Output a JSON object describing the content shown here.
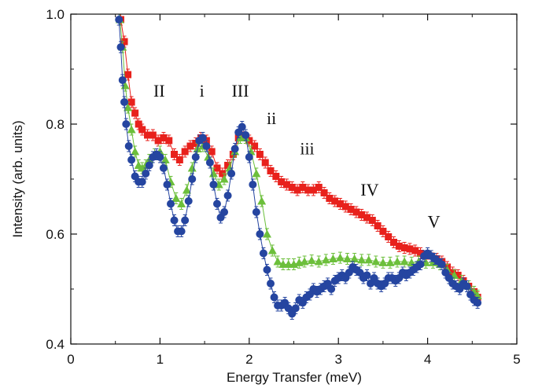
{
  "chart_data": {
    "type": "scatter",
    "xlabel": "Energy Transfer (meV)",
    "ylabel": "Intensity (arb. units)",
    "xlim": [
      0,
      5
    ],
    "ylim": [
      0.4,
      1.0
    ],
    "xticks": [
      0,
      1,
      2,
      3,
      4,
      5
    ],
    "yticks": [
      0.4,
      0.6,
      0.8,
      1.0
    ],
    "xtick_labels": [
      "0",
      "1",
      "2",
      "3",
      "4",
      "5"
    ],
    "ytick_labels": [
      "0.4",
      "0.6",
      "0.8",
      "1.0"
    ],
    "minor_x_step": 0.5,
    "minor_y_step": 0.1,
    "grid": false,
    "colors": {
      "red": "#e8211c",
      "green": "#6cbf3b",
      "blue": "#2545a0",
      "axis": "#111111"
    },
    "annotations": [
      {
        "text": "II",
        "x": 0.99,
        "y": 0.85
      },
      {
        "text": "i",
        "x": 1.47,
        "y": 0.85
      },
      {
        "text": "III",
        "x": 1.9,
        "y": 0.85
      },
      {
        "text": "ii",
        "x": 2.25,
        "y": 0.8
      },
      {
        "text": "iii",
        "x": 2.65,
        "y": 0.745
      },
      {
        "text": "IV",
        "x": 3.35,
        "y": 0.67
      },
      {
        "text": "V",
        "x": 4.07,
        "y": 0.612
      }
    ],
    "series": [
      {
        "marker": "square",
        "color": "red",
        "points": [
          [
            0.56,
            0.99
          ],
          [
            0.6,
            0.95
          ],
          [
            0.64,
            0.89
          ],
          [
            0.68,
            0.84
          ],
          [
            0.72,
            0.82
          ],
          [
            0.76,
            0.8
          ],
          [
            0.8,
            0.79
          ],
          [
            0.86,
            0.78
          ],
          [
            0.92,
            0.78
          ],
          [
            0.98,
            0.77
          ],
          [
            1.04,
            0.775
          ],
          [
            1.1,
            0.77
          ],
          [
            1.16,
            0.745
          ],
          [
            1.22,
            0.735
          ],
          [
            1.28,
            0.75
          ],
          [
            1.34,
            0.76
          ],
          [
            1.4,
            0.765
          ],
          [
            1.46,
            0.775
          ],
          [
            1.52,
            0.77
          ],
          [
            1.58,
            0.75
          ],
          [
            1.64,
            0.72
          ],
          [
            1.7,
            0.71
          ],
          [
            1.76,
            0.725
          ],
          [
            1.82,
            0.745
          ],
          [
            1.88,
            0.775
          ],
          [
            1.94,
            0.78
          ],
          [
            2.0,
            0.77
          ],
          [
            2.06,
            0.76
          ],
          [
            2.12,
            0.745
          ],
          [
            2.18,
            0.73
          ],
          [
            2.24,
            0.715
          ],
          [
            2.3,
            0.705
          ],
          [
            2.36,
            0.695
          ],
          [
            2.42,
            0.69
          ],
          [
            2.48,
            0.685
          ],
          [
            2.54,
            0.68
          ],
          [
            2.6,
            0.685
          ],
          [
            2.66,
            0.68
          ],
          [
            2.72,
            0.68
          ],
          [
            2.78,
            0.685
          ],
          [
            2.84,
            0.675
          ],
          [
            2.9,
            0.665
          ],
          [
            2.96,
            0.66
          ],
          [
            3.02,
            0.655
          ],
          [
            3.08,
            0.65
          ],
          [
            3.14,
            0.645
          ],
          [
            3.2,
            0.64
          ],
          [
            3.26,
            0.635
          ],
          [
            3.32,
            0.63
          ],
          [
            3.38,
            0.625
          ],
          [
            3.44,
            0.615
          ],
          [
            3.5,
            0.605
          ],
          [
            3.56,
            0.595
          ],
          [
            3.62,
            0.585
          ],
          [
            3.68,
            0.578
          ],
          [
            3.74,
            0.575
          ],
          [
            3.8,
            0.573
          ],
          [
            3.86,
            0.57
          ],
          [
            3.92,
            0.565
          ],
          [
            3.98,
            0.56
          ],
          [
            4.04,
            0.56
          ],
          [
            4.1,
            0.555
          ],
          [
            4.16,
            0.55
          ],
          [
            4.22,
            0.54
          ],
          [
            4.28,
            0.53
          ],
          [
            4.34,
            0.525
          ],
          [
            4.4,
            0.515
          ],
          [
            4.46,
            0.505
          ],
          [
            4.52,
            0.495
          ],
          [
            4.56,
            0.485
          ]
        ]
      },
      {
        "marker": "triangle",
        "color": "green",
        "points": [
          [
            0.55,
            0.99
          ],
          [
            0.58,
            0.94
          ],
          [
            0.61,
            0.87
          ],
          [
            0.64,
            0.83
          ],
          [
            0.68,
            0.79
          ],
          [
            0.72,
            0.75
          ],
          [
            0.76,
            0.725
          ],
          [
            0.8,
            0.72
          ],
          [
            0.84,
            0.725
          ],
          [
            0.88,
            0.735
          ],
          [
            0.94,
            0.745
          ],
          [
            1.0,
            0.75
          ],
          [
            1.06,
            0.735
          ],
          [
            1.12,
            0.695
          ],
          [
            1.18,
            0.665
          ],
          [
            1.24,
            0.655
          ],
          [
            1.3,
            0.68
          ],
          [
            1.36,
            0.72
          ],
          [
            1.42,
            0.755
          ],
          [
            1.48,
            0.76
          ],
          [
            1.54,
            0.74
          ],
          [
            1.6,
            0.71
          ],
          [
            1.66,
            0.69
          ],
          [
            1.72,
            0.7
          ],
          [
            1.78,
            0.72
          ],
          [
            1.84,
            0.75
          ],
          [
            1.9,
            0.775
          ],
          [
            1.96,
            0.775
          ],
          [
            2.02,
            0.75
          ],
          [
            2.08,
            0.71
          ],
          [
            2.14,
            0.66
          ],
          [
            2.2,
            0.6
          ],
          [
            2.26,
            0.57
          ],
          [
            2.32,
            0.55
          ],
          [
            2.38,
            0.545
          ],
          [
            2.44,
            0.545
          ],
          [
            2.5,
            0.545
          ],
          [
            2.56,
            0.548
          ],
          [
            2.62,
            0.55
          ],
          [
            2.7,
            0.552
          ],
          [
            2.78,
            0.55
          ],
          [
            2.86,
            0.553
          ],
          [
            2.94,
            0.555
          ],
          [
            3.02,
            0.557
          ],
          [
            3.1,
            0.555
          ],
          [
            3.18,
            0.555
          ],
          [
            3.26,
            0.553
          ],
          [
            3.34,
            0.553
          ],
          [
            3.42,
            0.55
          ],
          [
            3.5,
            0.548
          ],
          [
            3.58,
            0.548
          ],
          [
            3.66,
            0.55
          ],
          [
            3.74,
            0.55
          ],
          [
            3.82,
            0.548
          ],
          [
            3.9,
            0.55
          ],
          [
            3.98,
            0.548
          ],
          [
            4.06,
            0.548
          ],
          [
            4.14,
            0.545
          ],
          [
            4.22,
            0.535
          ],
          [
            4.3,
            0.525
          ],
          [
            4.38,
            0.515
          ],
          [
            4.46,
            0.505
          ],
          [
            4.52,
            0.495
          ],
          [
            4.56,
            0.488
          ]
        ]
      },
      {
        "marker": "circle",
        "color": "blue",
        "points": [
          [
            0.54,
            0.99
          ],
          [
            0.56,
            0.94
          ],
          [
            0.58,
            0.88
          ],
          [
            0.6,
            0.84
          ],
          [
            0.62,
            0.8
          ],
          [
            0.65,
            0.76
          ],
          [
            0.68,
            0.735
          ],
          [
            0.72,
            0.705
          ],
          [
            0.76,
            0.695
          ],
          [
            0.8,
            0.695
          ],
          [
            0.84,
            0.71
          ],
          [
            0.88,
            0.725
          ],
          [
            0.92,
            0.74
          ],
          [
            0.96,
            0.745
          ],
          [
            1.0,
            0.74
          ],
          [
            1.04,
            0.72
          ],
          [
            1.08,
            0.69
          ],
          [
            1.12,
            0.655
          ],
          [
            1.16,
            0.625
          ],
          [
            1.2,
            0.605
          ],
          [
            1.24,
            0.605
          ],
          [
            1.28,
            0.625
          ],
          [
            1.32,
            0.66
          ],
          [
            1.36,
            0.7
          ],
          [
            1.4,
            0.74
          ],
          [
            1.44,
            0.77
          ],
          [
            1.48,
            0.775
          ],
          [
            1.52,
            0.76
          ],
          [
            1.56,
            0.73
          ],
          [
            1.6,
            0.69
          ],
          [
            1.64,
            0.655
          ],
          [
            1.68,
            0.63
          ],
          [
            1.72,
            0.64
          ],
          [
            1.76,
            0.67
          ],
          [
            1.8,
            0.71
          ],
          [
            1.84,
            0.755
          ],
          [
            1.88,
            0.785
          ],
          [
            1.92,
            0.795
          ],
          [
            1.96,
            0.78
          ],
          [
            2.0,
            0.74
          ],
          [
            2.04,
            0.69
          ],
          [
            2.08,
            0.64
          ],
          [
            2.12,
            0.6
          ],
          [
            2.16,
            0.565
          ],
          [
            2.2,
            0.535
          ],
          [
            2.24,
            0.51
          ],
          [
            2.28,
            0.485
          ],
          [
            2.32,
            0.47
          ],
          [
            2.36,
            0.47
          ],
          [
            2.4,
            0.475
          ],
          [
            2.44,
            0.465
          ],
          [
            2.48,
            0.455
          ],
          [
            2.52,
            0.465
          ],
          [
            2.56,
            0.48
          ],
          [
            2.6,
            0.475
          ],
          [
            2.64,
            0.485
          ],
          [
            2.68,
            0.49
          ],
          [
            2.72,
            0.5
          ],
          [
            2.76,
            0.495
          ],
          [
            2.8,
            0.5
          ],
          [
            2.84,
            0.505
          ],
          [
            2.88,
            0.51
          ],
          [
            2.92,
            0.5
          ],
          [
            2.96,
            0.515
          ],
          [
            3.0,
            0.52
          ],
          [
            3.04,
            0.525
          ],
          [
            3.08,
            0.52
          ],
          [
            3.12,
            0.53
          ],
          [
            3.16,
            0.54
          ],
          [
            3.2,
            0.535
          ],
          [
            3.24,
            0.53
          ],
          [
            3.28,
            0.52
          ],
          [
            3.32,
            0.525
          ],
          [
            3.36,
            0.51
          ],
          [
            3.4,
            0.52
          ],
          [
            3.44,
            0.51
          ],
          [
            3.48,
            0.505
          ],
          [
            3.52,
            0.51
          ],
          [
            3.56,
            0.52
          ],
          [
            3.6,
            0.52
          ],
          [
            3.64,
            0.515
          ],
          [
            3.68,
            0.52
          ],
          [
            3.72,
            0.53
          ],
          [
            3.76,
            0.525
          ],
          [
            3.8,
            0.53
          ],
          [
            3.84,
            0.535
          ],
          [
            3.88,
            0.54
          ],
          [
            3.92,
            0.545
          ],
          [
            3.96,
            0.56
          ],
          [
            4.0,
            0.565
          ],
          [
            4.04,
            0.56
          ],
          [
            4.08,
            0.555
          ],
          [
            4.12,
            0.55
          ],
          [
            4.16,
            0.545
          ],
          [
            4.2,
            0.53
          ],
          [
            4.24,
            0.52
          ],
          [
            4.28,
            0.51
          ],
          [
            4.32,
            0.505
          ],
          [
            4.36,
            0.5
          ],
          [
            4.4,
            0.51
          ],
          [
            4.44,
            0.505
          ],
          [
            4.48,
            0.49
          ],
          [
            4.52,
            0.48
          ],
          [
            4.56,
            0.475
          ]
        ]
      }
    ]
  }
}
